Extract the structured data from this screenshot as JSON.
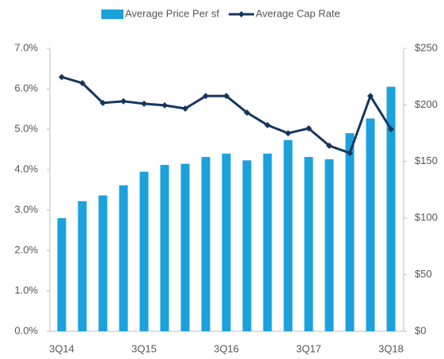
{
  "chart_data": {
    "type": "bar-line",
    "categories": [
      "3Q14",
      null,
      null,
      null,
      "3Q15",
      null,
      null,
      null,
      "3Q16",
      null,
      null,
      null,
      "3Q17",
      null,
      null,
      null,
      "3Q18"
    ],
    "series": [
      {
        "name": "Average Price Per sf",
        "type": "bar",
        "axis": "y2",
        "color": "#1ba1dc",
        "values": [
          100,
          115,
          120,
          129,
          141,
          147,
          148,
          154,
          157,
          151,
          157,
          169,
          154,
          152,
          175,
          188,
          216
        ]
      },
      {
        "name": "Average Cap Rate",
        "type": "line",
        "axis": "y",
        "color": "#17365d",
        "values": [
          6.29,
          6.14,
          5.65,
          5.69,
          5.63,
          5.59,
          5.51,
          5.82,
          5.82,
          5.41,
          5.1,
          4.9,
          5.02,
          4.59,
          4.41,
          5.82,
          5.0
        ]
      }
    ],
    "ylim": [
      0,
      7
    ],
    "yticks": [
      {
        "value": 0,
        "label": "0.0%"
      },
      {
        "value": 1,
        "label": "1.0%"
      },
      {
        "value": 2,
        "label": "2.0%"
      },
      {
        "value": 3,
        "label": "3.0%"
      },
      {
        "value": 4,
        "label": "4.0%"
      },
      {
        "value": 5,
        "label": "5.0%"
      },
      {
        "value": 6,
        "label": "6.0%"
      },
      {
        "value": 7,
        "label": "7.0%"
      }
    ],
    "y2lim": [
      0,
      250
    ],
    "y2ticks": [
      {
        "value": 0,
        "label": "$0"
      },
      {
        "value": 50,
        "label": "$50"
      },
      {
        "value": 100,
        "label": "$100"
      },
      {
        "value": 150,
        "label": "$150"
      },
      {
        "value": 200,
        "label": "$200"
      },
      {
        "value": 250,
        "label": "$250"
      }
    ],
    "legend": "top"
  }
}
